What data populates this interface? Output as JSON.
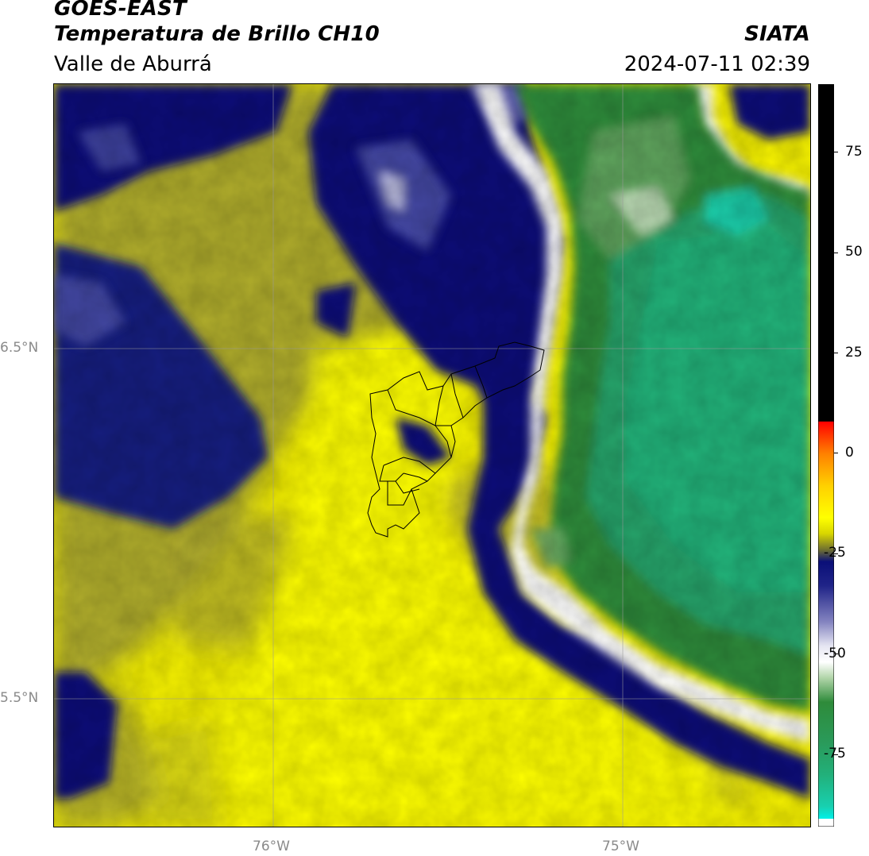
{
  "header": {
    "satellite": "GOES-EAST",
    "product": "Temperatura de Brillo CH10",
    "region": "Valle de Aburrá",
    "org": "SIATA",
    "datetime": "2024-07-11 02:39"
  },
  "map": {
    "lat_labels": [
      "6.5°N",
      "5.5°N"
    ],
    "lon_labels": [
      "76°W",
      "75°W"
    ],
    "colors": {
      "deep_blue": "#0a0f78",
      "purple_blue": "#4a4fa8",
      "lavender": "#c8c8e6",
      "olive": "#a9a530",
      "yellow": "#f5f100",
      "bright_yellow": "#ffff00",
      "green": "#2e8b3a",
      "teal": "#23b37a",
      "cyan": "#19d4b4"
    }
  },
  "colorbar": {
    "tick_labels": [
      "75",
      "50",
      "25",
      "0",
      "-25",
      "-50",
      "-75"
    ],
    "ticks": [
      75,
      50,
      25,
      0,
      -25,
      -50,
      -75
    ],
    "range": [
      -93,
      92
    ],
    "stops": [
      {
        "v": 92,
        "c": "#000000"
      },
      {
        "v": 8,
        "c": "#000000"
      },
      {
        "v": 7.9,
        "c": "#ff0000"
      },
      {
        "v": 0,
        "c": "#ff8000"
      },
      {
        "v": -8,
        "c": "#ffd000"
      },
      {
        "v": -16,
        "c": "#ffff00"
      },
      {
        "v": -20,
        "c": "#d8d600"
      },
      {
        "v": -24,
        "c": "#707030"
      },
      {
        "v": -27,
        "c": "#0a0f78"
      },
      {
        "v": -33,
        "c": "#202488"
      },
      {
        "v": -42,
        "c": "#8484c0"
      },
      {
        "v": -48,
        "c": "#e6e6f2"
      },
      {
        "v": -52,
        "c": "#ffffff"
      },
      {
        "v": -56,
        "c": "#b0d4a8"
      },
      {
        "v": -62,
        "c": "#2e8b3a"
      },
      {
        "v": -72,
        "c": "#2a9a5a"
      },
      {
        "v": -80,
        "c": "#22b07a"
      },
      {
        "v": -88,
        "c": "#18d0b0"
      },
      {
        "v": -91,
        "c": "#00f0e8"
      },
      {
        "v": -91.1,
        "c": "#ffffff"
      },
      {
        "v": -93,
        "c": "#ffffff"
      }
    ]
  }
}
